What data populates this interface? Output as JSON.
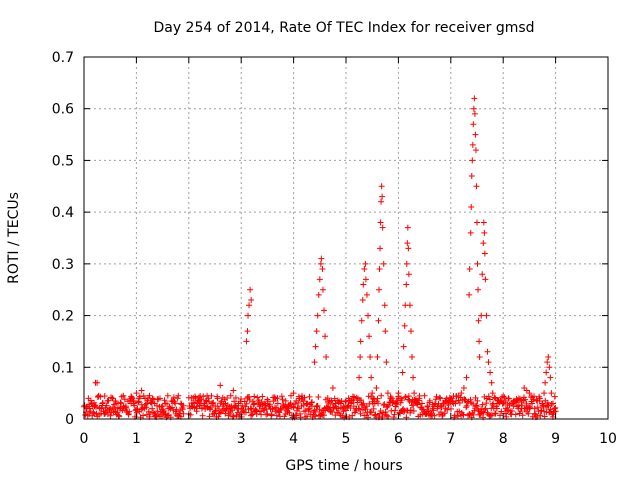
{
  "chart_data": {
    "type": "scatter",
    "title": "Day 254 of 2014, Rate Of TEC Index for receiver gmsd",
    "xlabel": "GPS time / hours",
    "ylabel": "ROTI / TECUs",
    "xlim": [
      0,
      10
    ],
    "ylim": [
      0,
      0.7
    ],
    "xticks": [
      "0",
      "1",
      "2",
      "3",
      "4",
      "5",
      "6",
      "7",
      "8",
      "9",
      "10"
    ],
    "yticks": [
      "0",
      "0.1",
      "0.2",
      "0.3",
      "0.4",
      "0.5",
      "0.6",
      "0.7"
    ],
    "grid": true,
    "marker": "+",
    "color": "#ff0000",
    "series": [
      {
        "name": "ROTI",
        "points": [
          [
            0.05,
            0.02
          ],
          [
            0.1,
            0.01
          ],
          [
            0.15,
            0.03
          ],
          [
            0.2,
            0.025
          ],
          [
            0.22,
            0.07
          ],
          [
            0.25,
            0.07
          ],
          [
            0.28,
            0.045
          ],
          [
            0.3,
            0.02
          ],
          [
            0.35,
            0.03
          ],
          [
            0.4,
            0.01
          ],
          [
            0.45,
            0.035
          ],
          [
            0.5,
            0.02
          ],
          [
            0.55,
            0.04
          ],
          [
            0.6,
            0.015
          ],
          [
            0.65,
            0.03
          ],
          [
            0.7,
            0.02
          ],
          [
            0.75,
            0.045
          ],
          [
            0.8,
            0.025
          ],
          [
            0.85,
            0.01
          ],
          [
            0.9,
            0.03
          ],
          [
            0.95,
            0.035
          ],
          [
            1.0,
            0.05
          ],
          [
            1.05,
            0.04
          ],
          [
            1.1,
            0.055
          ],
          [
            1.15,
            0.02
          ],
          [
            1.2,
            0.03
          ],
          [
            1.25,
            0.045
          ],
          [
            1.3,
            0.02
          ],
          [
            1.35,
            0.03
          ],
          [
            1.4,
            0.015
          ],
          [
            1.45,
            0.04
          ],
          [
            1.5,
            0.025
          ],
          [
            1.55,
            0.03
          ],
          [
            1.6,
            0.045
          ],
          [
            1.65,
            0.02
          ],
          [
            1.7,
            0.035
          ],
          [
            1.75,
            0.01
          ],
          [
            1.8,
            0.045
          ],
          [
            1.85,
            0.03
          ],
          [
            1.9,
            0.01
          ],
          [
            2.0,
            0.01
          ],
          [
            2.05,
            0.025
          ],
          [
            2.1,
            0.03
          ],
          [
            2.15,
            0.015
          ],
          [
            2.2,
            0.035
          ],
          [
            2.25,
            0.02
          ],
          [
            2.3,
            0.03
          ],
          [
            2.35,
            0.045
          ],
          [
            2.4,
            0.02
          ],
          [
            2.45,
            0.03
          ],
          [
            2.5,
            0.015
          ],
          [
            2.55,
            0.04
          ],
          [
            2.6,
            0.065
          ],
          [
            2.65,
            0.025
          ],
          [
            2.7,
            0.03
          ],
          [
            2.75,
            0.02
          ],
          [
            2.8,
            0.045
          ],
          [
            2.85,
            0.055
          ],
          [
            2.9,
            0.025
          ],
          [
            2.95,
            0.03
          ],
          [
            3.0,
            0.02
          ],
          [
            3.1,
            0.15
          ],
          [
            3.12,
            0.17
          ],
          [
            3.13,
            0.2
          ],
          [
            3.15,
            0.22
          ],
          [
            3.17,
            0.25
          ],
          [
            3.19,
            0.23
          ],
          [
            3.2,
            0.02
          ],
          [
            3.25,
            0.03
          ],
          [
            3.3,
            0.015
          ],
          [
            3.35,
            0.025
          ],
          [
            3.4,
            0.02
          ],
          [
            3.45,
            0.03
          ],
          [
            3.5,
            0.01
          ],
          [
            3.55,
            0.025
          ],
          [
            3.6,
            0.02
          ],
          [
            3.65,
            0.015
          ],
          [
            3.7,
            0.03
          ],
          [
            3.75,
            0.02
          ],
          [
            3.8,
            0.025
          ],
          [
            3.85,
            0.035
          ],
          [
            3.9,
            0.02
          ],
          [
            3.95,
            0.045
          ],
          [
            4.0,
            0.05
          ],
          [
            4.05,
            0.035
          ],
          [
            4.1,
            0.02
          ],
          [
            4.15,
            0.025
          ],
          [
            4.2,
            0.015
          ],
          [
            4.25,
            0.03
          ],
          [
            4.3,
            0.02
          ],
          [
            4.35,
            0.025
          ],
          [
            4.4,
            0.11
          ],
          [
            4.42,
            0.14
          ],
          [
            4.44,
            0.17
          ],
          [
            4.46,
            0.2
          ],
          [
            4.48,
            0.24
          ],
          [
            4.5,
            0.27
          ],
          [
            4.52,
            0.3
          ],
          [
            4.53,
            0.31
          ],
          [
            4.55,
            0.29
          ],
          [
            4.56,
            0.25
          ],
          [
            4.58,
            0.21
          ],
          [
            4.6,
            0.16
          ],
          [
            4.62,
            0.12
          ],
          [
            4.65,
            0.02
          ],
          [
            4.7,
            0.015
          ],
          [
            4.75,
            0.06
          ],
          [
            4.8,
            0.03
          ],
          [
            4.85,
            0.02
          ],
          [
            4.9,
            0.03
          ],
          [
            4.95,
            0.025
          ],
          [
            5.0,
            0.035
          ],
          [
            5.05,
            0.04
          ],
          [
            5.1,
            0.03
          ],
          [
            5.15,
            0.025
          ],
          [
            5.2,
            0.02
          ],
          [
            5.25,
            0.08
          ],
          [
            5.27,
            0.12
          ],
          [
            5.28,
            0.15
          ],
          [
            5.3,
            0.19
          ],
          [
            5.32,
            0.23
          ],
          [
            5.33,
            0.26
          ],
          [
            5.35,
            0.29
          ],
          [
            5.37,
            0.3
          ],
          [
            5.38,
            0.27
          ],
          [
            5.4,
            0.24
          ],
          [
            5.42,
            0.2
          ],
          [
            5.44,
            0.16
          ],
          [
            5.46,
            0.12
          ],
          [
            5.48,
            0.08
          ],
          [
            5.5,
            0.05
          ],
          [
            5.52,
            0.04
          ],
          [
            5.55,
            0.03
          ],
          [
            5.58,
            0.06
          ],
          [
            5.6,
            0.12
          ],
          [
            5.62,
            0.19
          ],
          [
            5.63,
            0.25
          ],
          [
            5.64,
            0.29
          ],
          [
            5.65,
            0.33
          ],
          [
            5.66,
            0.38
          ],
          [
            5.67,
            0.42
          ],
          [
            5.68,
            0.45
          ],
          [
            5.69,
            0.43
          ],
          [
            5.7,
            0.37
          ],
          [
            5.72,
            0.3
          ],
          [
            5.74,
            0.22
          ],
          [
            5.75,
            0.17
          ],
          [
            5.77,
            0.11
          ],
          [
            5.8,
            0.05
          ],
          [
            5.85,
            0.04
          ],
          [
            5.9,
            0.035
          ],
          [
            5.95,
            0.03
          ],
          [
            6.0,
            0.05
          ],
          [
            6.05,
            0.04
          ],
          [
            6.08,
            0.09
          ],
          [
            6.1,
            0.14
          ],
          [
            6.12,
            0.18
          ],
          [
            6.13,
            0.22
          ],
          [
            6.15,
            0.26
          ],
          [
            6.16,
            0.3
          ],
          [
            6.17,
            0.34
          ],
          [
            6.18,
            0.37
          ],
          [
            6.19,
            0.33
          ],
          [
            6.2,
            0.28
          ],
          [
            6.22,
            0.22
          ],
          [
            6.24,
            0.17
          ],
          [
            6.26,
            0.12
          ],
          [
            6.28,
            0.08
          ],
          [
            6.3,
            0.05
          ],
          [
            6.35,
            0.03
          ],
          [
            6.4,
            0.04
          ],
          [
            6.45,
            0.03
          ],
          [
            6.5,
            0.045
          ],
          [
            6.55,
            0.025
          ],
          [
            6.6,
            0.035
          ],
          [
            6.65,
            0.02
          ],
          [
            6.7,
            0.03
          ],
          [
            6.75,
            0.025
          ],
          [
            6.8,
            0.04
          ],
          [
            6.85,
            0.03
          ],
          [
            6.9,
            0.02
          ],
          [
            6.95,
            0.035
          ],
          [
            7.0,
            0.04
          ],
          [
            7.05,
            0.03
          ],
          [
            7.1,
            0.035
          ],
          [
            7.15,
            0.045
          ],
          [
            7.2,
            0.05
          ],
          [
            7.25,
            0.06
          ],
          [
            7.3,
            0.08
          ],
          [
            7.35,
            0.24
          ],
          [
            7.36,
            0.29
          ],
          [
            7.38,
            0.36
          ],
          [
            7.39,
            0.41
          ],
          [
            7.4,
            0.47
          ],
          [
            7.41,
            0.5
          ],
          [
            7.42,
            0.53
          ],
          [
            7.43,
            0.57
          ],
          [
            7.44,
            0.6
          ],
          [
            7.45,
            0.62
          ],
          [
            7.46,
            0.59
          ],
          [
            7.47,
            0.55
          ],
          [
            7.48,
            0.52
          ],
          [
            7.49,
            0.45
          ],
          [
            7.5,
            0.38
          ],
          [
            7.51,
            0.3
          ],
          [
            7.52,
            0.25
          ],
          [
            7.53,
            0.19
          ],
          [
            7.54,
            0.15
          ],
          [
            7.55,
            0.12
          ],
          [
            7.58,
            0.2
          ],
          [
            7.6,
            0.28
          ],
          [
            7.62,
            0.34
          ],
          [
            7.63,
            0.38
          ],
          [
            7.64,
            0.36
          ],
          [
            7.65,
            0.32
          ],
          [
            7.66,
            0.27
          ],
          [
            7.68,
            0.2
          ],
          [
            7.7,
            0.13
          ],
          [
            7.72,
            0.11
          ],
          [
            7.75,
            0.09
          ],
          [
            7.78,
            0.07
          ],
          [
            7.8,
            0.05
          ],
          [
            7.85,
            0.04
          ],
          [
            7.9,
            0.03
          ],
          [
            7.95,
            0.035
          ],
          [
            8.0,
            0.03
          ],
          [
            8.05,
            0.02
          ],
          [
            8.1,
            0.04
          ],
          [
            8.15,
            0.03
          ],
          [
            8.2,
            0.025
          ],
          [
            8.25,
            0.035
          ],
          [
            8.3,
            0.04
          ],
          [
            8.35,
            0.02
          ],
          [
            8.4,
            0.06
          ],
          [
            8.45,
            0.055
          ],
          [
            8.5,
            0.05
          ],
          [
            8.55,
            0.03
          ],
          [
            8.6,
            0.02
          ],
          [
            8.65,
            0.035
          ],
          [
            8.7,
            0.04
          ],
          [
            8.75,
            0.03
          ],
          [
            8.78,
            0.05
          ],
          [
            8.8,
            0.07
          ],
          [
            8.82,
            0.09
          ],
          [
            8.84,
            0.11
          ],
          [
            8.86,
            0.12
          ],
          [
            8.88,
            0.1
          ],
          [
            8.9,
            0.08
          ],
          [
            8.92,
            0.05
          ],
          [
            8.95,
            0.03
          ],
          [
            8.98,
            0.02
          ],
          [
            9.0,
            0.015
          ]
        ]
      }
    ]
  }
}
